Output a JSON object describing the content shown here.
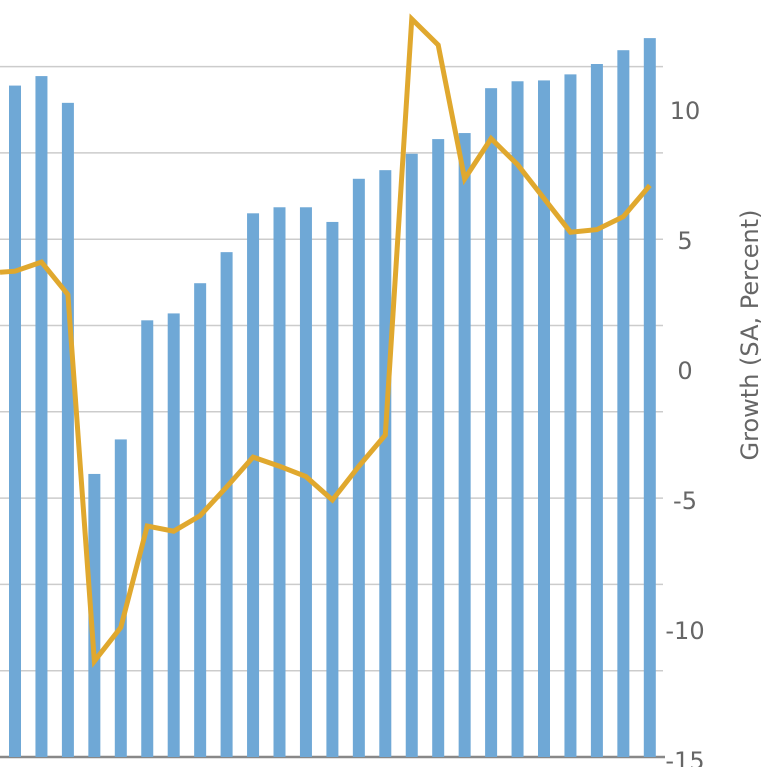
{
  "chart_data": {
    "type": "bar+line",
    "title": "",
    "ylabel_right": "Growth (SA, Percent)",
    "right_ticks": [
      "10",
      "5",
      "0",
      "-5",
      "-10",
      "-15"
    ],
    "right_tick_values": [
      10,
      5,
      0,
      -5,
      -10,
      -15
    ],
    "right_ylim": [
      -15,
      14
    ],
    "left_axis_labels_visible": false,
    "left_ylim_gridlines": [
      0,
      8.5
    ],
    "grid": true,
    "colors": {
      "bars": "#6fa8d6",
      "line": "#e0a82e",
      "grid": "#cccccc",
      "axis": "#888888"
    },
    "series": [
      {
        "type": "bar",
        "axis": "left",
        "values": [
          7.78,
          7.89,
          7.58,
          3.28,
          3.68,
          5.06,
          5.14,
          5.49,
          5.85,
          6.3,
          6.37,
          6.37,
          6.2,
          6.7,
          6.8,
          6.99,
          7.16,
          7.23,
          7.75,
          7.83,
          7.84,
          7.91,
          8.03,
          8.19,
          8.33
        ]
      },
      {
        "type": "line",
        "axis": "right",
        "values": [
          3.8,
          4.15,
          2.9,
          -11.2,
          -9.9,
          -6.0,
          -6.2,
          -5.6,
          -4.5,
          -3.35,
          -3.7,
          -4.1,
          -5.0,
          -3.7,
          -2.5,
          13.5,
          12.5,
          7.35,
          8.9,
          7.9,
          6.6,
          5.3,
          5.4,
          5.9,
          7.1
        ]
      }
    ]
  }
}
